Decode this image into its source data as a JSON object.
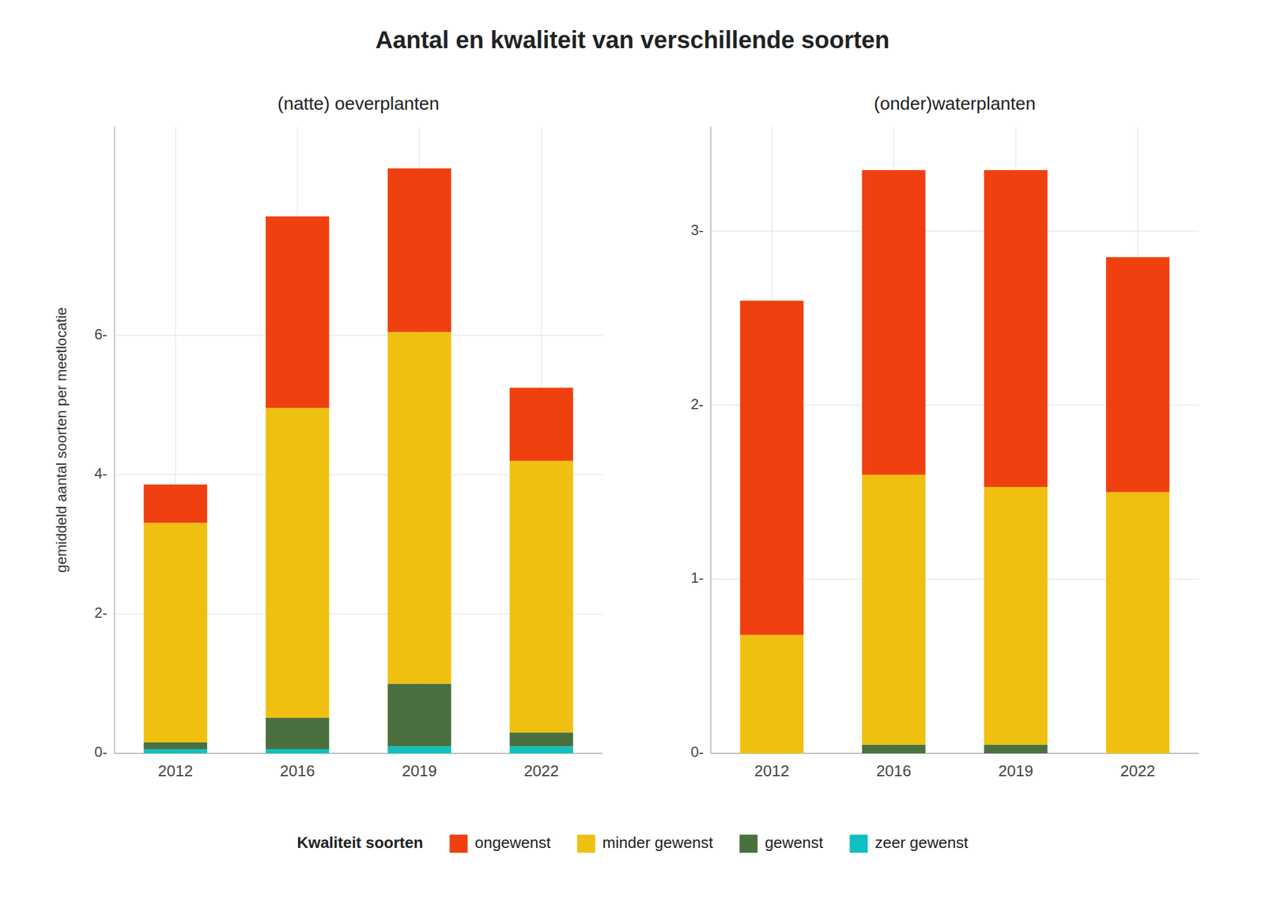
{
  "chart_data": [
    {
      "type": "bar",
      "stacked": true,
      "grid": true,
      "title": "Aantal en kwaliteit van verschillende soorten",
      "subtitle": "(natte) oeverplanten",
      "ylabel": "gemiddeld aantal soorten per meetlocatie",
      "legend_title": "Kwaliteit soorten",
      "categories": [
        "2012",
        "2016",
        "2019",
        "2022"
      ],
      "series": [
        {
          "name": "zeer gewenst",
          "color": "#10C0C0",
          "values": [
            0.06,
            0.06,
            0.1,
            0.1
          ]
        },
        {
          "name": "gewenst",
          "color": "#4A7040",
          "values": [
            0.1,
            0.45,
            0.9,
            0.2
          ]
        },
        {
          "name": "minder gewenst",
          "color": "#F0C010",
          "values": [
            3.15,
            4.45,
            5.05,
            3.9
          ]
        },
        {
          "name": "ongewenst",
          "color": "#F04010",
          "values": [
            0.55,
            2.75,
            2.35,
            1.05
          ]
        }
      ],
      "ylim": [
        0,
        9.0
      ],
      "yticks": [
        {
          "value": 0,
          "label": "0-"
        },
        {
          "value": 2,
          "label": "2-"
        },
        {
          "value": 4,
          "label": "4-"
        },
        {
          "value": 6,
          "label": "6-"
        }
      ]
    },
    {
      "type": "bar",
      "stacked": true,
      "grid": true,
      "subtitle": "(onder)waterplanten",
      "categories": [
        "2012",
        "2016",
        "2019",
        "2022"
      ],
      "series": [
        {
          "name": "zeer gewenst",
          "color": "#10C0C0",
          "values": [
            0.0,
            0.0,
            0.0,
            0.0
          ]
        },
        {
          "name": "gewenst",
          "color": "#4A7040",
          "values": [
            0.0,
            0.05,
            0.05,
            0.0
          ]
        },
        {
          "name": "minder gewenst",
          "color": "#F0C010",
          "values": [
            0.68,
            1.55,
            1.48,
            1.5
          ]
        },
        {
          "name": "ongewenst",
          "color": "#F04010",
          "values": [
            1.92,
            1.75,
            1.82,
            1.35
          ]
        }
      ],
      "ylim": [
        0,
        3.6
      ],
      "yticks": [
        {
          "value": 0,
          "label": "0-"
        },
        {
          "value": 1,
          "label": "1-"
        },
        {
          "value": 2,
          "label": "2-"
        },
        {
          "value": 3,
          "label": "3-"
        }
      ]
    }
  ]
}
